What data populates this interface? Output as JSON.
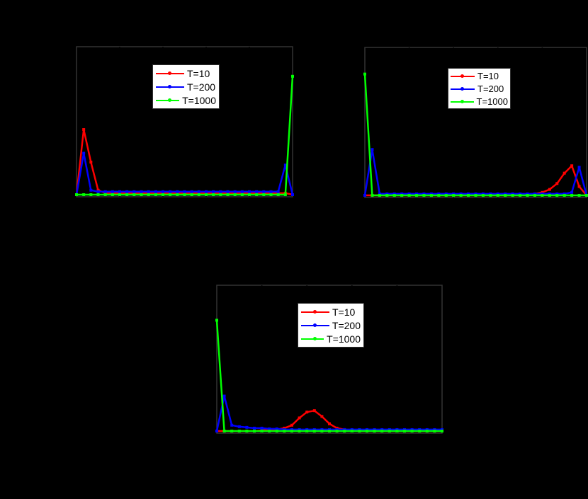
{
  "figure": {
    "background": "#000000",
    "frame_color": "#333333"
  },
  "legend_entries": [
    {
      "label": "T=10",
      "color": "#ff0000"
    },
    {
      "label": "T=200",
      "color": "#0000ff"
    },
    {
      "label": "T=1000",
      "color": "#00ff00"
    }
  ],
  "chart_data": [
    {
      "type": "line",
      "position": "top-left",
      "title": "",
      "xlabel": "",
      "ylabel": "",
      "x": [
        0,
        1,
        2,
        3,
        4,
        5,
        6,
        7,
        8,
        9,
        10,
        11,
        12,
        13,
        14,
        15,
        16,
        17,
        18,
        19,
        20,
        21,
        22,
        23,
        24,
        25,
        26,
        27,
        28,
        29,
        30
      ],
      "ylim": [
        0,
        1
      ],
      "grid": false,
      "legend_position": "upper-center",
      "series": [
        {
          "name": "T=10",
          "color": "#ff0000",
          "values": [
            0.0,
            0.44,
            0.22,
            0.03,
            0.01,
            0.01,
            0.01,
            0.01,
            0.01,
            0.01,
            0.01,
            0.01,
            0.01,
            0.01,
            0.01,
            0.01,
            0.01,
            0.01,
            0.01,
            0.01,
            0.01,
            0.01,
            0.01,
            0.01,
            0.01,
            0.01,
            0.01,
            0.01,
            0.01,
            0.01,
            0.0
          ]
        },
        {
          "name": "T=200",
          "color": "#0000ff",
          "values": [
            0.0,
            0.28,
            0.03,
            0.02,
            0.02,
            0.02,
            0.02,
            0.02,
            0.02,
            0.02,
            0.02,
            0.02,
            0.02,
            0.02,
            0.02,
            0.02,
            0.02,
            0.02,
            0.02,
            0.02,
            0.02,
            0.02,
            0.02,
            0.02,
            0.02,
            0.02,
            0.02,
            0.02,
            0.02,
            0.2,
            0.0
          ]
        },
        {
          "name": "T=1000",
          "color": "#00ff00",
          "values": [
            0.0,
            0.0,
            0.0,
            0.0,
            0.0,
            0.0,
            0.0,
            0.0,
            0.0,
            0.0,
            0.0,
            0.0,
            0.0,
            0.0,
            0.0,
            0.0,
            0.0,
            0.0,
            0.0,
            0.0,
            0.0,
            0.0,
            0.0,
            0.0,
            0.0,
            0.0,
            0.0,
            0.0,
            0.0,
            0.0,
            0.8
          ]
        }
      ]
    },
    {
      "type": "line",
      "position": "top-right",
      "title": "",
      "xlabel": "",
      "ylabel": "",
      "x": [
        0,
        1,
        2,
        3,
        4,
        5,
        6,
        7,
        8,
        9,
        10,
        11,
        12,
        13,
        14,
        15,
        16,
        17,
        18,
        19,
        20,
        21,
        22,
        23,
        24,
        25,
        26,
        27,
        28,
        29,
        30
      ],
      "ylim": [
        0,
        1
      ],
      "grid": false,
      "legend_position": "upper-center",
      "series": [
        {
          "name": "T=10",
          "color": "#ff0000",
          "values": [
            0.0,
            0.0,
            0.0,
            0.0,
            0.0,
            0.0,
            0.0,
            0.0,
            0.0,
            0.0,
            0.0,
            0.0,
            0.0,
            0.0,
            0.0,
            0.0,
            0.0,
            0.0,
            0.0,
            0.0,
            0.0,
            0.0,
            0.005,
            0.01,
            0.02,
            0.04,
            0.08,
            0.15,
            0.2,
            0.06,
            0.0
          ]
        },
        {
          "name": "T=200",
          "color": "#0000ff",
          "values": [
            0.0,
            0.31,
            0.01,
            0.01,
            0.01,
            0.01,
            0.01,
            0.01,
            0.01,
            0.01,
            0.01,
            0.01,
            0.01,
            0.01,
            0.01,
            0.01,
            0.01,
            0.01,
            0.01,
            0.01,
            0.01,
            0.01,
            0.01,
            0.01,
            0.01,
            0.01,
            0.01,
            0.01,
            0.02,
            0.19,
            0.0
          ]
        },
        {
          "name": "T=1000",
          "color": "#00ff00",
          "values": [
            0.82,
            0.0,
            0.0,
            0.0,
            0.0,
            0.0,
            0.0,
            0.0,
            0.0,
            0.0,
            0.0,
            0.0,
            0.0,
            0.0,
            0.0,
            0.0,
            0.0,
            0.0,
            0.0,
            0.0,
            0.0,
            0.0,
            0.0,
            0.0,
            0.0,
            0.0,
            0.0,
            0.0,
            0.0,
            0.0,
            0.0
          ]
        }
      ]
    },
    {
      "type": "line",
      "position": "bottom-center",
      "title": "",
      "xlabel": "",
      "ylabel": "",
      "x": [
        0,
        1,
        2,
        3,
        4,
        5,
        6,
        7,
        8,
        9,
        10,
        11,
        12,
        13,
        14,
        15,
        16,
        17,
        18,
        19,
        20,
        21,
        22,
        23,
        24,
        25,
        26,
        27,
        28,
        29,
        30
      ],
      "ylim": [
        0,
        1
      ],
      "grid": false,
      "legend_position": "upper-center",
      "series": [
        {
          "name": "T=10",
          "color": "#ff0000",
          "values": [
            0.0,
            0.0,
            0.0,
            0.0,
            0.0,
            0.0,
            0.005,
            0.01,
            0.01,
            0.02,
            0.04,
            0.09,
            0.13,
            0.14,
            0.1,
            0.05,
            0.02,
            0.01,
            0.005,
            0.0,
            0.0,
            0.0,
            0.0,
            0.0,
            0.0,
            0.0,
            0.0,
            0.0,
            0.0,
            0.0,
            0.0
          ]
        },
        {
          "name": "T=200",
          "color": "#0000ff",
          "values": [
            0.0,
            0.24,
            0.04,
            0.03,
            0.025,
            0.02,
            0.02,
            0.015,
            0.015,
            0.01,
            0.01,
            0.01,
            0.01,
            0.01,
            0.01,
            0.01,
            0.01,
            0.01,
            0.01,
            0.01,
            0.01,
            0.01,
            0.01,
            0.01,
            0.01,
            0.01,
            0.01,
            0.01,
            0.01,
            0.01,
            0.01
          ]
        },
        {
          "name": "T=1000",
          "color": "#00ff00",
          "values": [
            0.76,
            0.0,
            0.0,
            0.0,
            0.0,
            0.0,
            0.0,
            0.0,
            0.0,
            0.0,
            0.0,
            0.0,
            0.0,
            0.0,
            0.0,
            0.0,
            0.0,
            0.0,
            0.0,
            0.0,
            0.0,
            0.0,
            0.0,
            0.0,
            0.0,
            0.0,
            0.0,
            0.0,
            0.0,
            0.0,
            0.0
          ]
        }
      ]
    }
  ]
}
